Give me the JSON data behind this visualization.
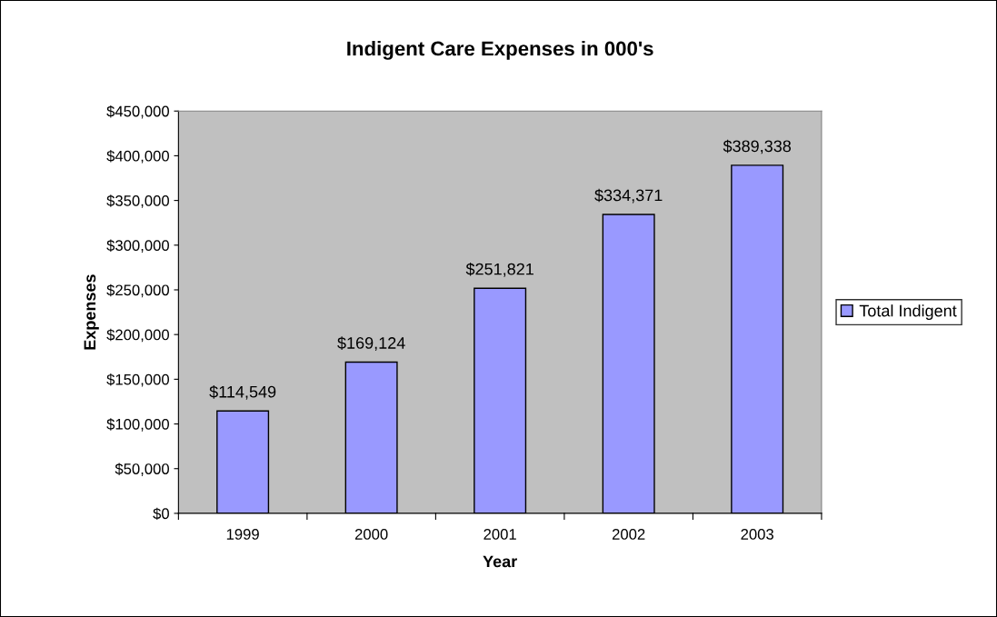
{
  "chart_data": {
    "type": "bar",
    "title": "Indigent Care Expenses in 000's",
    "xlabel": "Year",
    "ylabel": "Expenses",
    "categories": [
      "1999",
      "2000",
      "2001",
      "2002",
      "2003"
    ],
    "series": [
      {
        "name": "Total Indigent",
        "color": "#9999ff",
        "values": [
          114549,
          169124,
          251821,
          334371,
          389338
        ],
        "value_labels": [
          "$114,549",
          "$169,124",
          "$251,821",
          "$334,371",
          "$389,338"
        ]
      }
    ],
    "ylim": [
      0,
      450000
    ],
    "yticks": [
      {
        "value": 0,
        "label": "$0"
      },
      {
        "value": 50000,
        "label": "$50,000"
      },
      {
        "value": 100000,
        "label": "$100,000"
      },
      {
        "value": 150000,
        "label": "$150,000"
      },
      {
        "value": 200000,
        "label": "$200,000"
      },
      {
        "value": 250000,
        "label": "$250,000"
      },
      {
        "value": 300000,
        "label": "$300,000"
      },
      {
        "value": 350000,
        "label": "$350,000"
      },
      {
        "value": 400000,
        "label": "$400,000"
      },
      {
        "value": 450000,
        "label": "$450,000"
      }
    ],
    "grid": false,
    "legend": "right"
  }
}
